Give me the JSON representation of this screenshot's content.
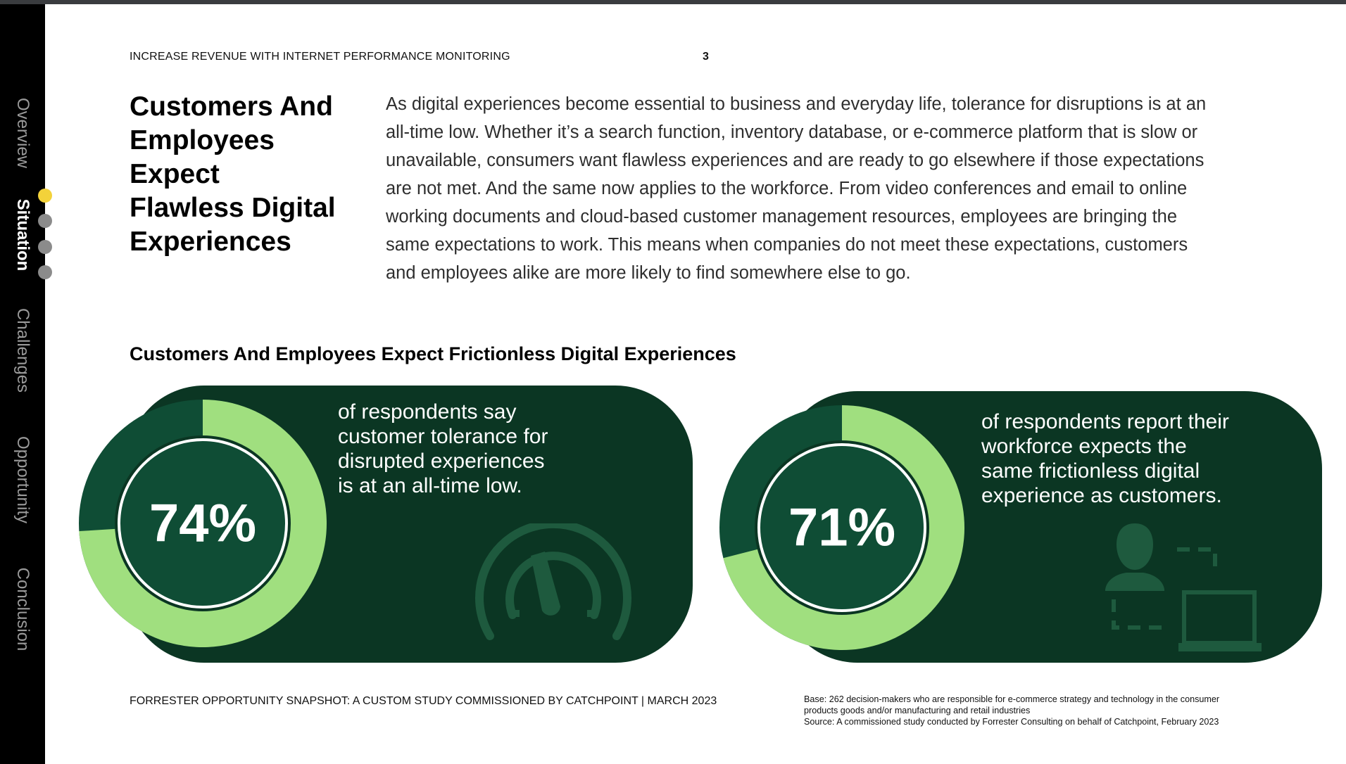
{
  "nav": {
    "items": [
      "Overview",
      "Situation",
      "Challenges",
      "Opportunity",
      "Conclusion"
    ],
    "active_index": 1,
    "active_sub_index": 0
  },
  "header": {
    "title": "INCREASE REVENUE WITH INTERNET PERFORMANCE MONITORING",
    "page_number": "3"
  },
  "main": {
    "heading_lines": [
      "Customers And",
      "Employees",
      "Expect",
      "Flawless Digital",
      "Experiences"
    ],
    "intro_lines": [
      "As digital experiences become essential to business and everyday life, tolerance for disruptions is at an",
      "all-time low. Whether it’s a search function, inventory database, or e-commerce platform that is slow or",
      "unavailable, consumers want flawless experiences and are ready to go elsewhere if those expectations",
      "are not met. And the same now applies to the workforce. From video conferences and email to online",
      "working documents and cloud-based customer management resources, employees are bringing the",
      "same expectations to work. This means when companies do not meet these expectations, customers",
      "and employees alike are more likely to find somewhere else to go."
    ],
    "section_title": "Customers And Employees Expect Frictionless Digital Experiences"
  },
  "stats": [
    {
      "value": "74%",
      "fraction": 0.74,
      "text_lines": [
        "of respondents say",
        "customer tolerance for",
        "disrupted experiences",
        "is at an all-time low."
      ],
      "icon": "speedometer-icon"
    },
    {
      "value": "71%",
      "fraction": 0.71,
      "text_lines": [
        "of respondents report their",
        "workforce expects the",
        "same frictionless digital",
        "experience as customers."
      ],
      "icon": "person-laptop-icon"
    }
  ],
  "colors": {
    "card_bg": "#0b3623",
    "ring_fill": "#a0df7f",
    "ring_rest": "#0f4d35",
    "accent_dot": "#f3d23a"
  },
  "footer": {
    "left": "FORRESTER OPPORTUNITY SNAPSHOT: A CUSTOM STUDY COMMISSIONED BY CATCHPOINT | MARCH 2023",
    "right_lines": [
      "Base: 262 decision-makers who are responsible for e-commerce strategy and technology in the consumer",
      "products goods and/or manufacturing and retail industries",
      "Source: A commissioned study conducted by Forrester Consulting on behalf of Catchpoint, February 2023"
    ]
  }
}
